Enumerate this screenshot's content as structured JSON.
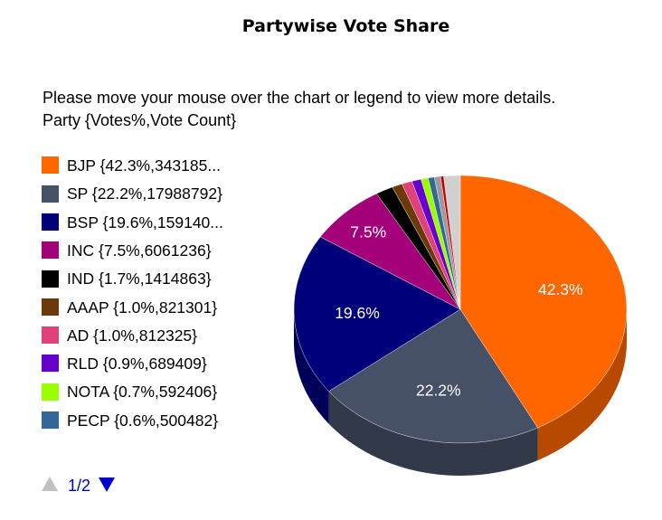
{
  "page": {
    "title": "Partywise Vote Share",
    "instruction_line1": "Please move your mouse over the chart or legend to view more details.",
    "instruction_line2": "Party {Votes%,Vote Count}"
  },
  "legend": {
    "page_label": "1/2",
    "items": [
      {
        "label": "BJP {42.3%,343185...",
        "color": "#ff6600"
      },
      {
        "label": "SP {22.2%,17988792}",
        "color": "#465066"
      },
      {
        "label": "BSP {19.6%,159140...",
        "color": "#00007a"
      },
      {
        "label": "INC {7.5%,6061236}",
        "color": "#a4007a"
      },
      {
        "label": "IND {1.7%,1414863}",
        "color": "#000000"
      },
      {
        "label": "AAAP {1.0%,821301}",
        "color": "#6b3a08"
      },
      {
        "label": "AD {1.0%,812325}",
        "color": "#e0417a"
      },
      {
        "label": "RLD {0.9%,689409}",
        "color": "#6600cc"
      },
      {
        "label": "NOTA {0.7%,592406}",
        "color": "#99ff00"
      },
      {
        "label": "PECP {0.6%,500482}",
        "color": "#336699"
      }
    ]
  },
  "chart_data": {
    "type": "pie",
    "title": "Partywise Vote Share",
    "slices": [
      {
        "name": "BJP",
        "percent": 42.3,
        "votes_label": "343185...",
        "color": "#ff6600",
        "data_label": "42.3%"
      },
      {
        "name": "SP",
        "percent": 22.2,
        "votes": 17988792,
        "color": "#465066",
        "data_label": "22.2%"
      },
      {
        "name": "BSP",
        "percent": 19.6,
        "votes_label": "159140...",
        "color": "#00007a",
        "data_label": "19.6%"
      },
      {
        "name": "INC",
        "percent": 7.5,
        "votes": 6061236,
        "color": "#a4007a",
        "data_label": "7.5%"
      },
      {
        "name": "IND",
        "percent": 1.7,
        "votes": 1414863,
        "color": "#000000",
        "data_label": ""
      },
      {
        "name": "AAAP",
        "percent": 1.0,
        "votes": 821301,
        "color": "#6b3a08",
        "data_label": ""
      },
      {
        "name": "AD",
        "percent": 1.0,
        "votes": 812325,
        "color": "#e0417a",
        "data_label": ""
      },
      {
        "name": "RLD",
        "percent": 0.9,
        "votes": 689409,
        "color": "#6600cc",
        "data_label": ""
      },
      {
        "name": "NOTA",
        "percent": 0.7,
        "votes": 592406,
        "color": "#99ff00",
        "data_label": ""
      },
      {
        "name": "PECP",
        "percent": 0.6,
        "votes": 500482,
        "color": "#336699",
        "data_label": ""
      },
      {
        "name": "",
        "percent": 0.6,
        "color": "#9b9b9b",
        "data_label": ""
      },
      {
        "name": "",
        "percent": 0.3,
        "color": "#cc0000",
        "data_label": ""
      },
      {
        "name": "",
        "percent": 1.6,
        "color": "#d0d0d0",
        "data_label": ""
      }
    ],
    "legend_position": "left",
    "style": "3d"
  }
}
